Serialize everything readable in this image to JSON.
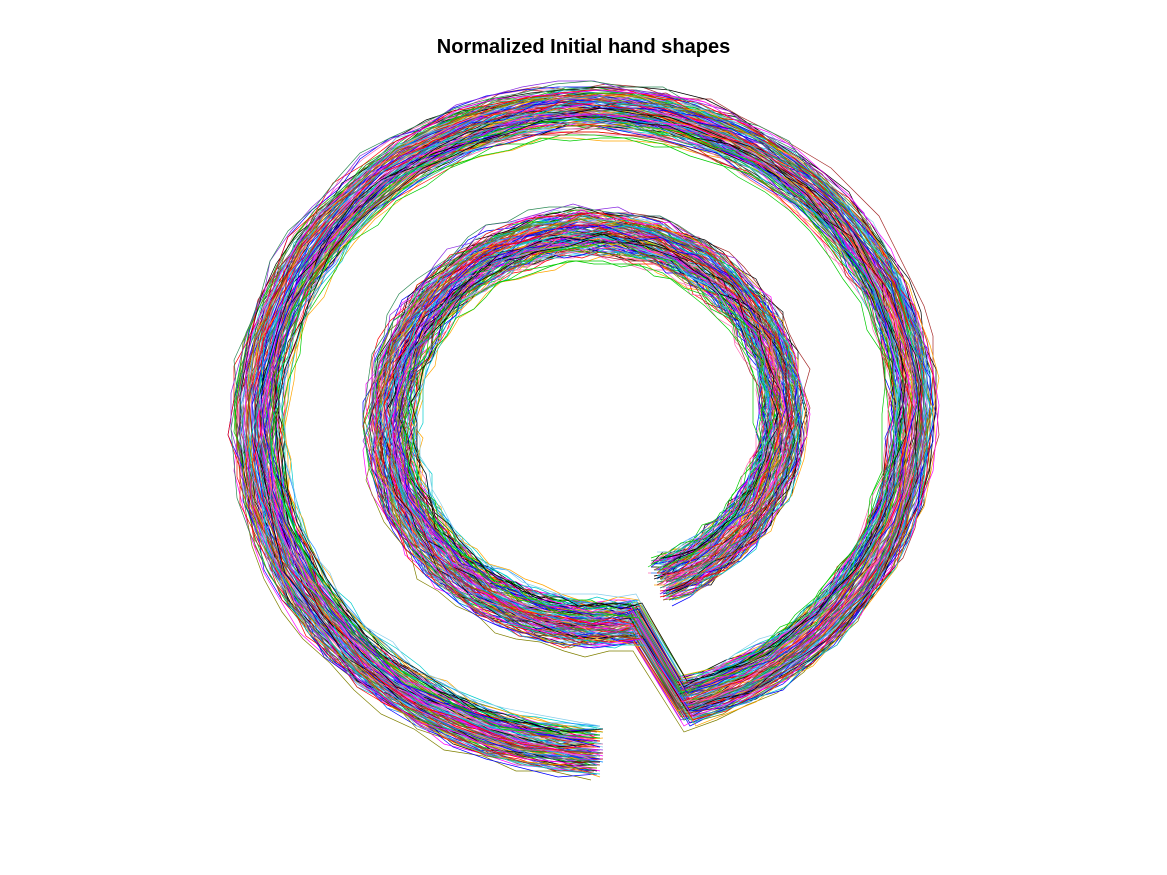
{
  "chart_data": {
    "type": "line",
    "title": "Normalized Initial hand shapes",
    "xlabel": "",
    "ylabel": "",
    "axes_visible": false,
    "grid": false,
    "legend": "none",
    "aspect": "equal",
    "xlim": [
      -1.3,
      1.3
    ],
    "ylim": [
      -1.3,
      1.3
    ],
    "shape": "two-turn spiral traced repeatedly",
    "spiral": {
      "outer_radius": 1.0,
      "inner_radius": 0.62,
      "center_hole_radius": 0.45
    },
    "series_count": 160,
    "colors": [
      "#0000ff",
      "#ff0000",
      "#00cc00",
      "#ff00ff",
      "#00cccc",
      "#000000",
      "#ffa500",
      "#8a2be2",
      "#1e90ff",
      "#808000",
      "#ff69b4",
      "#2e8b57",
      "#a52a2a",
      "#87ceeb"
    ]
  }
}
